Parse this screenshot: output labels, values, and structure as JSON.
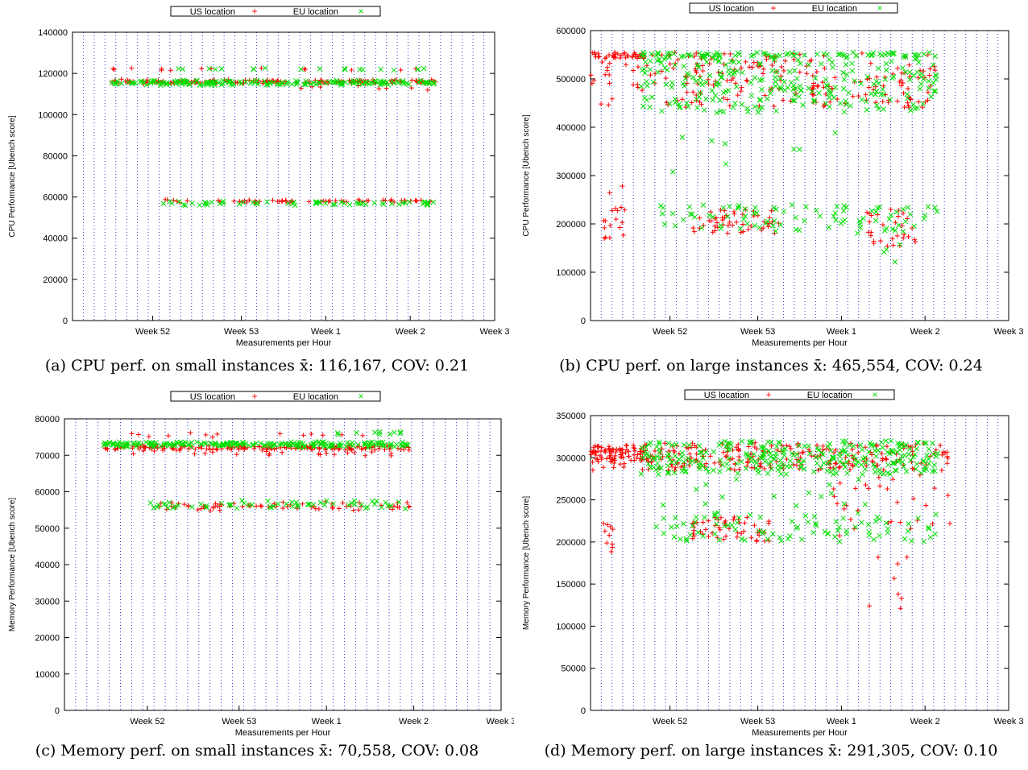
{
  "colors": {
    "us": "#ff0000",
    "eu": "#00dd00",
    "grid": "#3333cc",
    "axis": "#000000"
  },
  "panels": [
    {
      "id": "a",
      "caption": "(a) CPU perf. on small instances x̄: 116,167, COV: 0.21",
      "chart_data": {
        "type": "scatter",
        "xlabel": "Measurements per Hour",
        "ylabel": "CPU Performance [Ubench score]",
        "ylim": [
          0,
          140000
        ],
        "yticks": [
          0,
          20000,
          40000,
          60000,
          80000,
          100000,
          120000,
          140000
        ],
        "xticklabels": [
          "Week 52",
          "Week 53",
          "Week 1",
          "Week 2",
          "Week 3"
        ],
        "grid": "vertical dotted lines",
        "legend_position": "top",
        "series": [
          {
            "name": "US location",
            "marker": "+",
            "clusters": [
              {
                "x": [
                  0.09,
                  0.86
                ],
                "y": [
                  116000,
                  116000
                ],
                "spread": 1200,
                "n": 160
              },
              {
                "x": [
                  0.09,
                  0.86
                ],
                "y": [
                  122000,
                  122000
                ],
                "spread": 800,
                "n": 14
              },
              {
                "x": [
                  0.21,
                  0.86
                ],
                "y": [
                  58000,
                  58000
                ],
                "spread": 1000,
                "n": 60
              },
              {
                "x": [
                  0.52,
                  0.86
                ],
                "y": [
                  113000,
                  113000
                ],
                "spread": 1500,
                "n": 8
              }
            ]
          },
          {
            "name": "EU location",
            "marker": "x",
            "clusters": [
              {
                "x": [
                  0.09,
                  0.86
                ],
                "y": [
                  115500,
                  115500
                ],
                "spread": 1300,
                "n": 180
              },
              {
                "x": [
                  0.24,
                  0.86
                ],
                "y": [
                  122000,
                  122000
                ],
                "spread": 800,
                "n": 20
              },
              {
                "x": [
                  0.21,
                  0.86
                ],
                "y": [
                  57000,
                  57000
                ],
                "spread": 1200,
                "n": 60
              }
            ]
          }
        ]
      }
    },
    {
      "id": "b",
      "caption": "(b) CPU perf. on large instances x̄: 465,554, COV: 0.24",
      "chart_data": {
        "type": "scatter",
        "xlabel": "Measurements per Hour",
        "ylabel": "CPU Performance [Ubench score]",
        "ylim": [
          0,
          600000
        ],
        "yticks": [
          0,
          100000,
          200000,
          300000,
          400000,
          500000,
          600000
        ],
        "xticklabels": [
          "Week 52",
          "Week 53",
          "Week 1",
          "Week 2",
          "Week 3"
        ],
        "grid": "vertical dotted lines",
        "legend_position": "top",
        "series": [
          {
            "name": "US location",
            "marker": "+",
            "clusters": [
              {
                "x": [
                  0.0,
                  0.83
                ],
                "y": [
                  440000,
                  555000
                ],
                "spread": 0,
                "n": 220
              },
              {
                "x": [
                  0.0,
                  0.13
                ],
                "y": [
                  540000,
                  555000
                ],
                "spread": 0,
                "n": 40
              },
              {
                "x": [
                  0.03,
                  0.09
                ],
                "y": [
                  170000,
                  240000
                ],
                "spread": 0,
                "n": 14
              },
              {
                "x": [
                  0.24,
                  0.45
                ],
                "y": [
                  180000,
                  230000
                ],
                "spread": 0,
                "n": 50
              },
              {
                "x": [
                  0.66,
                  0.78
                ],
                "y": [
                  150000,
                  230000
                ],
                "spread": 0,
                "n": 30
              },
              {
                "x": [
                  0.04,
                  0.08
                ],
                "y": [
                  110000,
                  280000
                ],
                "spread": 0,
                "n": 4
              }
            ]
          },
          {
            "name": "EU location",
            "marker": "x",
            "clusters": [
              {
                "x": [
                  0.12,
                  0.83
                ],
                "y": [
                  430000,
                  555000
                ],
                "spread": 0,
                "n": 260
              },
              {
                "x": [
                  0.12,
                  0.83
                ],
                "y": [
                  545000,
                  555000
                ],
                "spread": 0,
                "n": 60
              },
              {
                "x": [
                  0.16,
                  0.83
                ],
                "y": [
                  180000,
                  240000
                ],
                "spread": 0,
                "n": 90
              },
              {
                "x": [
                  0.16,
                  0.6
                ],
                "y": [
                  300000,
                  400000
                ],
                "spread": 0,
                "n": 8
              },
              {
                "x": [
                  0.68,
                  0.78
                ],
                "y": [
                  110000,
                  160000
                ],
                "spread": 0,
                "n": 4
              }
            ]
          }
        ]
      }
    },
    {
      "id": "c",
      "caption": "(c) Memory perf. on small instances x̄: 70,558, COV: 0.08",
      "chart_data": {
        "type": "scatter",
        "xlabel": "Measurements per Hour",
        "ylabel": "Memory Performance [Ubench score]",
        "ylim": [
          0,
          80000
        ],
        "yticks": [
          0,
          10000,
          20000,
          30000,
          40000,
          50000,
          60000,
          70000,
          80000
        ],
        "xticklabels": [
          "Week 52",
          "Week 53",
          "Week 1",
          "Week 2",
          "Week 3"
        ],
        "grid": "vertical dotted lines",
        "legend_position": "top",
        "series": [
          {
            "name": "US location",
            "marker": "+",
            "clusters": [
              {
                "x": [
                  0.09,
                  0.79
                ],
                "y": [
                  72000,
                  72000
                ],
                "spread": 900,
                "n": 160
              },
              {
                "x": [
                  0.09,
                  0.79
                ],
                "y": [
                  75500,
                  75500
                ],
                "spread": 900,
                "n": 14
              },
              {
                "x": [
                  0.21,
                  0.79
                ],
                "y": [
                  56000,
                  56000
                ],
                "spread": 1300,
                "n": 70
              },
              {
                "x": [
                  0.14,
                  0.79
                ],
                "y": [
                  70500,
                  70500
                ],
                "spread": 800,
                "n": 20
              }
            ]
          },
          {
            "name": "EU location",
            "marker": "x",
            "clusters": [
              {
                "x": [
                  0.09,
                  0.79
                ],
                "y": [
                  73000,
                  73000
                ],
                "spread": 900,
                "n": 200
              },
              {
                "x": [
                  0.6,
                  0.79
                ],
                "y": [
                  76000,
                  76000
                ],
                "spread": 500,
                "n": 10
              },
              {
                "x": [
                  0.19,
                  0.79
                ],
                "y": [
                  56500,
                  56500
                ],
                "spread": 1500,
                "n": 60
              }
            ]
          }
        ]
      }
    },
    {
      "id": "d",
      "caption": "(d) Memory perf. on large instances x̄: 291,305, COV: 0.10",
      "chart_data": {
        "type": "scatter",
        "xlabel": "Measurements per Hour",
        "ylabel": "Memory Performance [Ubench score]",
        "ylim": [
          0,
          350000
        ],
        "yticks": [
          0,
          50000,
          100000,
          150000,
          200000,
          250000,
          300000,
          350000
        ],
        "xticklabels": [
          "Week 52",
          "Week 53",
          "Week 1",
          "Week 2",
          "Week 3"
        ],
        "grid": "vertical dotted lines",
        "legend_position": "top",
        "series": [
          {
            "name": "US location",
            "marker": "+",
            "clusters": [
              {
                "x": [
                  0.0,
                  0.86
                ],
                "y": [
                  285000,
                  318000
                ],
                "spread": 0,
                "n": 260
              },
              {
                "x": [
                  0.0,
                  0.13
                ],
                "y": [
                  295000,
                  315000
                ],
                "spread": 0,
                "n": 60
              },
              {
                "x": [
                  0.03,
                  0.06
                ],
                "y": [
                  185000,
                  225000
                ],
                "spread": 0,
                "n": 10
              },
              {
                "x": [
                  0.24,
                  0.43
                ],
                "y": [
                  200000,
                  230000
                ],
                "spread": 0,
                "n": 50
              },
              {
                "x": [
                  0.58,
                  0.86
                ],
                "y": [
                  205000,
                  280000
                ],
                "spread": 0,
                "n": 30
              },
              {
                "x": [
                  0.66,
                  0.76
                ],
                "y": [
                  120000,
                  200000
                ],
                "spread": 0,
                "n": 8
              }
            ]
          },
          {
            "name": "EU location",
            "marker": "x",
            "clusters": [
              {
                "x": [
                  0.12,
                  0.83
                ],
                "y": [
                  280000,
                  320000
                ],
                "spread": 0,
                "n": 280
              },
              {
                "x": [
                  0.15,
                  0.83
                ],
                "y": [
                  200000,
                  235000
                ],
                "spread": 0,
                "n": 90
              },
              {
                "x": [
                  0.15,
                  0.7
                ],
                "y": [
                  240000,
                  275000
                ],
                "spread": 0,
                "n": 15
              }
            ]
          }
        ]
      }
    }
  ]
}
